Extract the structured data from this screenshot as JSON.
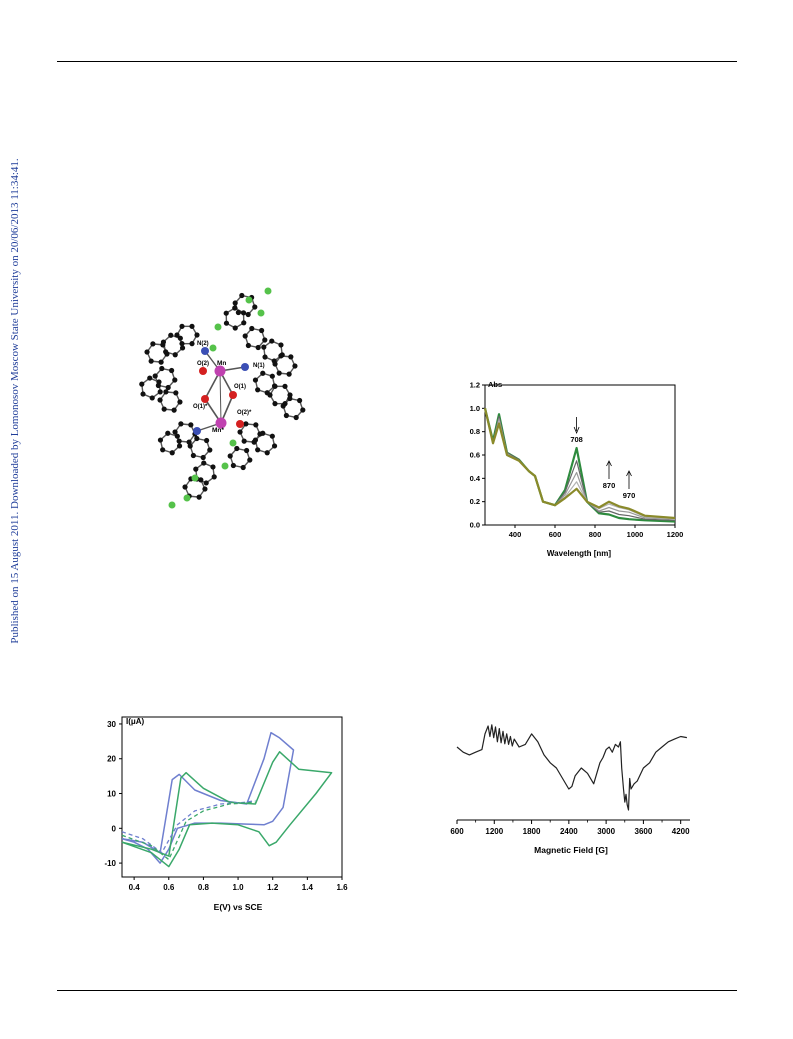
{
  "side_note": "Published on 15 August 2011. Downloaded by Lomonosov Moscow State University on 20/06/2013 11:34:41.",
  "structure": {
    "labels": [
      "N(2)",
      "Mn",
      "O(2)",
      "N(1)",
      "O(1)",
      "O(1)*",
      "Mn*",
      "O(2)*"
    ],
    "colors": {
      "carbon": "#111111",
      "nitrogen": "#3b4fb5",
      "oxygen": "#d42020",
      "manganese": "#c042b0",
      "fluorine": "#55c24a",
      "bond": "#555555"
    }
  },
  "chart_data": [
    {
      "type": "line",
      "title": "",
      "ylabel": "Abs",
      "xlabel": "Wavelength [nm]",
      "xlim": [
        250,
        1200
      ],
      "ylim": [
        0,
        1.2
      ],
      "xticks": [
        400,
        600,
        800,
        1000,
        1200
      ],
      "yticks": [
        "0.0",
        "0.2",
        "0.4",
        "0.6",
        "0.8",
        "1.0",
        "1.2"
      ],
      "annotations": [
        {
          "text": "708",
          "x": 708,
          "arrow": "down"
        },
        {
          "text": "870",
          "x": 870,
          "arrow": "up"
        },
        {
          "text": "970",
          "x": 970,
          "arrow": "up"
        }
      ],
      "series": [
        {
          "color": "#2e8b3e",
          "width": 2.2,
          "x": [
            250,
            290,
            320,
            360,
            420,
            470,
            500,
            540,
            600,
            650,
            708,
            760,
            820,
            870,
            920,
            970,
            1050,
            1200
          ],
          "y": [
            1.0,
            0.72,
            0.95,
            0.62,
            0.56,
            0.46,
            0.42,
            0.2,
            0.17,
            0.3,
            0.66,
            0.2,
            0.1,
            0.09,
            0.06,
            0.05,
            0.04,
            0.03
          ]
        },
        {
          "color": "#666666",
          "width": 1.2,
          "x": [
            250,
            290,
            320,
            360,
            420,
            470,
            500,
            540,
            600,
            650,
            708,
            760,
            820,
            870,
            920,
            970,
            1050,
            1200
          ],
          "y": [
            1.0,
            0.71,
            0.93,
            0.62,
            0.56,
            0.46,
            0.42,
            0.2,
            0.17,
            0.28,
            0.55,
            0.2,
            0.11,
            0.12,
            0.09,
            0.08,
            0.05,
            0.04
          ]
        },
        {
          "color": "#999999",
          "width": 1.2,
          "x": [
            250,
            290,
            320,
            360,
            420,
            470,
            500,
            540,
            600,
            650,
            708,
            760,
            820,
            870,
            920,
            970,
            1050,
            1200
          ],
          "y": [
            1.0,
            0.7,
            0.91,
            0.61,
            0.55,
            0.46,
            0.42,
            0.2,
            0.17,
            0.26,
            0.45,
            0.2,
            0.12,
            0.15,
            0.12,
            0.11,
            0.06,
            0.05
          ]
        },
        {
          "color": "#b3b3b3",
          "width": 1.2,
          "x": [
            250,
            290,
            320,
            360,
            420,
            470,
            500,
            540,
            600,
            650,
            708,
            760,
            820,
            870,
            920,
            970,
            1050,
            1200
          ],
          "y": [
            1.0,
            0.7,
            0.89,
            0.61,
            0.55,
            0.46,
            0.42,
            0.2,
            0.17,
            0.24,
            0.37,
            0.2,
            0.14,
            0.18,
            0.15,
            0.13,
            0.07,
            0.05
          ]
        },
        {
          "color": "#8a8a2a",
          "width": 2.2,
          "x": [
            250,
            290,
            320,
            360,
            420,
            470,
            500,
            540,
            600,
            650,
            708,
            760,
            820,
            870,
            920,
            970,
            1050,
            1200
          ],
          "y": [
            1.0,
            0.7,
            0.87,
            0.6,
            0.55,
            0.46,
            0.42,
            0.2,
            0.17,
            0.23,
            0.31,
            0.2,
            0.15,
            0.2,
            0.16,
            0.14,
            0.08,
            0.06
          ]
        }
      ]
    },
    {
      "type": "line",
      "title": "",
      "ylabel": "I(μA)",
      "xlabel": "E(V) vs SCE",
      "xlim": [
        0.33,
        1.6
      ],
      "ylim": [
        -14,
        32
      ],
      "xticks": [
        "0.4",
        "0.6",
        "0.8",
        "1.0",
        "1.2",
        "1.4",
        "1.6"
      ],
      "yticks": [
        "-10",
        "0",
        "10",
        "20",
        "30"
      ],
      "series": [
        {
          "color": "#6f7fcf",
          "width": 1.5,
          "dash": "",
          "x": [
            0.33,
            0.45,
            0.55,
            0.62,
            0.66,
            0.75,
            0.9,
            1.05,
            1.15,
            1.19,
            1.24,
            1.32,
            1.26,
            1.2,
            1.15,
            1.05,
            0.9,
            0.75,
            0.65,
            0.6,
            0.55,
            0.48,
            0.4,
            0.33
          ],
          "y": [
            -3,
            -4,
            -7,
            14,
            15.5,
            11,
            8,
            7,
            20,
            27.5,
            26,
            22.5,
            6,
            2,
            1,
            1.2,
            1.5,
            1.5,
            0,
            -6,
            -10,
            -6,
            -4,
            -3
          ]
        },
        {
          "color": "#3aa86a",
          "width": 1.5,
          "dash": "",
          "x": [
            0.33,
            0.5,
            0.6,
            0.67,
            0.7,
            0.8,
            0.95,
            1.1,
            1.2,
            1.24,
            1.35,
            1.54,
            1.45,
            1.3,
            1.22,
            1.18,
            1.12,
            1.0,
            0.85,
            0.72,
            0.66,
            0.6,
            0.5,
            0.33
          ],
          "y": [
            -4,
            -6,
            -8,
            14.5,
            16,
            11.5,
            7.5,
            7,
            19,
            22,
            17,
            16,
            10,
            1,
            -4,
            -5,
            -1,
            1,
            1.5,
            1,
            -6,
            -11,
            -7,
            -4
          ]
        },
        {
          "color": "#6f7fcf",
          "width": 1.3,
          "dash": "4,3",
          "x": [
            0.33,
            0.45,
            0.56,
            0.65,
            0.75,
            0.9,
            1.05,
            1.1
          ],
          "y": [
            -1,
            -3,
            -7,
            1,
            5,
            7,
            7.5,
            8
          ]
        },
        {
          "color": "#3aa86a",
          "width": 1.3,
          "dash": "4,3",
          "x": [
            0.33,
            0.5,
            0.6,
            0.7,
            0.8,
            0.95,
            1.1
          ],
          "y": [
            -2,
            -5,
            -9,
            2,
            5,
            7,
            7.5
          ]
        }
      ]
    },
    {
      "type": "line",
      "title": "",
      "ylabel": "",
      "xlabel": "Magnetic Field [G]",
      "xlim": [
        600,
        4350
      ],
      "ylim": [
        -100,
        100
      ],
      "xticks": [
        "600",
        "1200",
        "1800",
        "2400",
        "3000",
        "3600",
        "4200"
      ],
      "series": [
        {
          "color": "#222222",
          "width": 1.2,
          "x": [
            600,
            700,
            800,
            900,
            1000,
            1050,
            1100,
            1130,
            1160,
            1190,
            1220,
            1250,
            1280,
            1310,
            1340,
            1370,
            1400,
            1430,
            1460,
            1490,
            1520,
            1600,
            1700,
            1800,
            1900,
            2000,
            2100,
            2200,
            2300,
            2400,
            2450,
            2500,
            2600,
            2700,
            2800,
            2900,
            2950,
            3000,
            3050,
            3100,
            3150,
            3200,
            3230,
            3250,
            3280,
            3300,
            3320,
            3340,
            3360,
            3380,
            3400,
            3450,
            3500,
            3600,
            3700,
            3800,
            3900,
            4000,
            4100,
            4200,
            4300
          ],
          "y": [
            20,
            10,
            5,
            10,
            15,
            45,
            60,
            40,
            62,
            38,
            58,
            30,
            55,
            28,
            50,
            26,
            45,
            25,
            40,
            22,
            35,
            20,
            25,
            45,
            30,
            5,
            -10,
            -20,
            -40,
            -60,
            -55,
            -35,
            -20,
            -30,
            -50,
            -10,
            0,
            15,
            20,
            10,
            25,
            20,
            30,
            -20,
            -60,
            -85,
            -70,
            -90,
            -100,
            -40,
            -60,
            -50,
            -45,
            -20,
            -10,
            10,
            20,
            30,
            35,
            40,
            38
          ]
        }
      ]
    }
  ]
}
